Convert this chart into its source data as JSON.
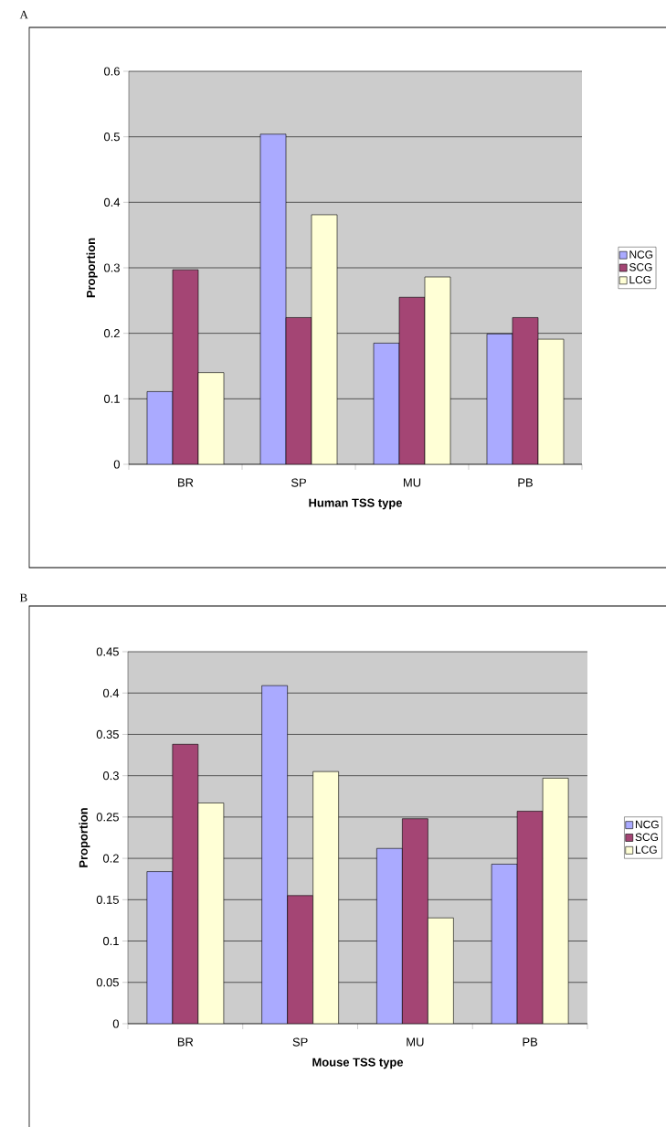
{
  "chart_data": [
    {
      "type": "bar",
      "annotations": [
        "A"
      ],
      "xlabel": "Human TSS type",
      "ylabel": "Proportion",
      "categories": [
        "BR",
        "SP",
        "MU",
        "PB"
      ],
      "series": [
        {
          "name": "NCG",
          "color": "#aaaaff",
          "values": [
            0.111,
            0.504,
            0.185,
            0.199
          ]
        },
        {
          "name": "SCG",
          "color": "#a44574",
          "values": [
            0.297,
            0.224,
            0.255,
            0.224
          ]
        },
        {
          "name": "LCG",
          "color": "#ffffd6",
          "values": [
            0.14,
            0.381,
            0.286,
            0.191
          ]
        }
      ],
      "ylim": [
        0,
        0.6
      ],
      "yticks": [
        0,
        0.1,
        0.2,
        0.3,
        0.4,
        0.5,
        0.6
      ],
      "grid": "y",
      "legend": "right"
    },
    {
      "type": "bar",
      "annotations": [
        "B"
      ],
      "xlabel": "Mouse TSS type",
      "ylabel": "Proportion",
      "categories": [
        "BR",
        "SP",
        "MU",
        "PB"
      ],
      "series": [
        {
          "name": "NCG",
          "color": "#aaaaff",
          "values": [
            0.184,
            0.409,
            0.212,
            0.193
          ]
        },
        {
          "name": "SCG",
          "color": "#a44574",
          "values": [
            0.338,
            0.155,
            0.248,
            0.257
          ]
        },
        {
          "name": "LCG",
          "color": "#ffffd6",
          "values": [
            0.267,
            0.305,
            0.128,
            0.297
          ]
        }
      ],
      "ylim": [
        0,
        0.45
      ],
      "yticks": [
        0,
        0.05,
        0.1,
        0.15,
        0.2,
        0.25,
        0.3,
        0.35,
        0.4,
        0.45
      ],
      "grid": "y",
      "legend": "right"
    }
  ]
}
